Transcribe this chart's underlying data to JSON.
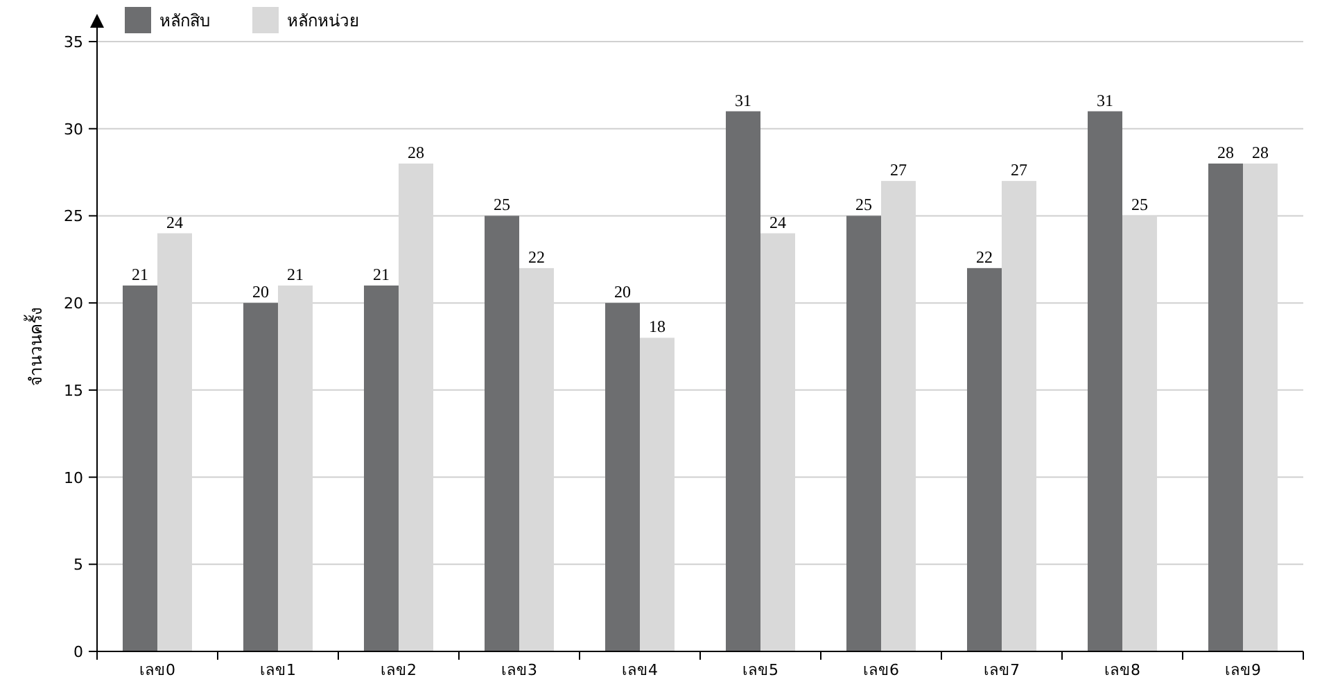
{
  "chart_data": {
    "type": "bar",
    "ylabel": "จำนวนครั้ง",
    "categories": [
      "เลข0",
      "เลข1",
      "เลข2",
      "เลข3",
      "เลข4",
      "เลข5",
      "เลข6",
      "เลข7",
      "เลข8",
      "เลข9"
    ],
    "series": [
      {
        "name": "หลักสิบ",
        "color": "#6d6e70",
        "values": [
          21,
          20,
          21,
          25,
          20,
          31,
          25,
          22,
          31,
          28
        ]
      },
      {
        "name": "หลักหน่วย",
        "color": "#d9d9d9",
        "values": [
          24,
          21,
          28,
          22,
          18,
          24,
          27,
          27,
          25,
          28
        ]
      }
    ],
    "ylim": [
      0,
      35
    ],
    "yticks": [
      0,
      5,
      10,
      15,
      20,
      25,
      30,
      35
    ],
    "grid": "y",
    "legend": "top left",
    "data_labels": true
  }
}
